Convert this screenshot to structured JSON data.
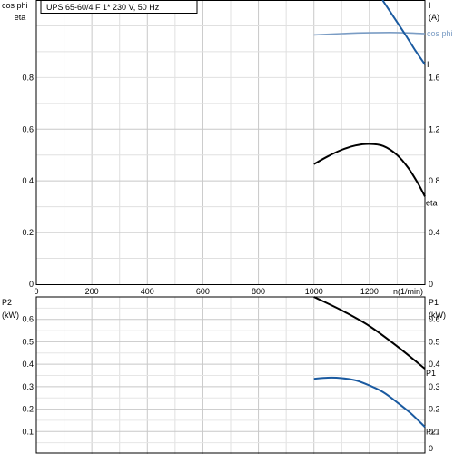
{
  "chart_data": [
    {
      "type": "line",
      "title": "UPS 65-60/4 F    1* 230 V, 50 Hz",
      "xlabel": "n(1/min)",
      "xlim": [
        0,
        1400
      ],
      "x_ticks": [
        "0",
        "200",
        "400",
        "600",
        "800",
        "1000",
        "1200"
      ],
      "left_axis": {
        "labels": [
          "cos phi",
          "eta"
        ],
        "ylim": [
          0,
          1.1
        ],
        "ticks": [
          "0",
          "0.2",
          "0.4",
          "0.6",
          "0.8"
        ]
      },
      "right_axis": {
        "labels": [
          "I",
          "(A)"
        ],
        "ylim": [
          0,
          2.2
        ],
        "ticks": [
          "0",
          "0.4",
          "0.8",
          "1.2",
          "1.6"
        ]
      },
      "grid": true,
      "series": [
        {
          "name": "eta",
          "color": "#000000",
          "axis": "left",
          "x": [
            1000,
            1050,
            1100,
            1150,
            1200,
            1250,
            1300,
            1340,
            1375,
            1400
          ],
          "y": [
            0.465,
            0.495,
            0.52,
            0.537,
            0.543,
            0.535,
            0.5,
            0.45,
            0.39,
            0.34
          ]
        },
        {
          "name": "cos phi",
          "color": "#7a9cc4",
          "axis": "left",
          "x": [
            1000,
            1100,
            1200,
            1300,
            1400
          ],
          "y": [
            0.965,
            0.97,
            0.973,
            0.974,
            0.97
          ]
        },
        {
          "name": "I",
          "color": "#1a5aa0",
          "axis": "right",
          "x": [
            1247,
            1290,
            1330,
            1365,
            1400
          ],
          "y": [
            2.2,
            2.06,
            1.93,
            1.81,
            1.7
          ]
        }
      ]
    },
    {
      "type": "line",
      "title": "",
      "xlabel": "",
      "xlim": [
        0,
        1400
      ],
      "left_axis": {
        "labels": [
          "P2",
          "(kW)"
        ],
        "ylim": [
          0,
          0.7
        ],
        "ticks": [
          "0.1",
          "0.2",
          "0.3",
          "0.4",
          "0.5",
          "0.6"
        ]
      },
      "right_axis": {
        "labels": [
          "P1",
          "(kW)"
        ],
        "ylim": [
          0,
          0.7
        ],
        "ticks": [
          "0",
          "0.1",
          "0.2",
          "0.3",
          "0.4",
          "0.5",
          "0.6"
        ]
      },
      "grid": true,
      "series": [
        {
          "name": "P1",
          "color": "#000000",
          "axis": "left",
          "x": [
            1000,
            1100,
            1200,
            1300,
            1400
          ],
          "y": [
            0.7,
            0.64,
            0.57,
            0.48,
            0.38
          ]
        },
        {
          "name": "P2",
          "color": "#1a5aa0",
          "axis": "left",
          "x": [
            1000,
            1050,
            1100,
            1150,
            1200,
            1250,
            1300,
            1350,
            1400
          ],
          "y": [
            0.335,
            0.34,
            0.338,
            0.328,
            0.305,
            0.275,
            0.23,
            0.18,
            0.12
          ]
        }
      ]
    }
  ]
}
